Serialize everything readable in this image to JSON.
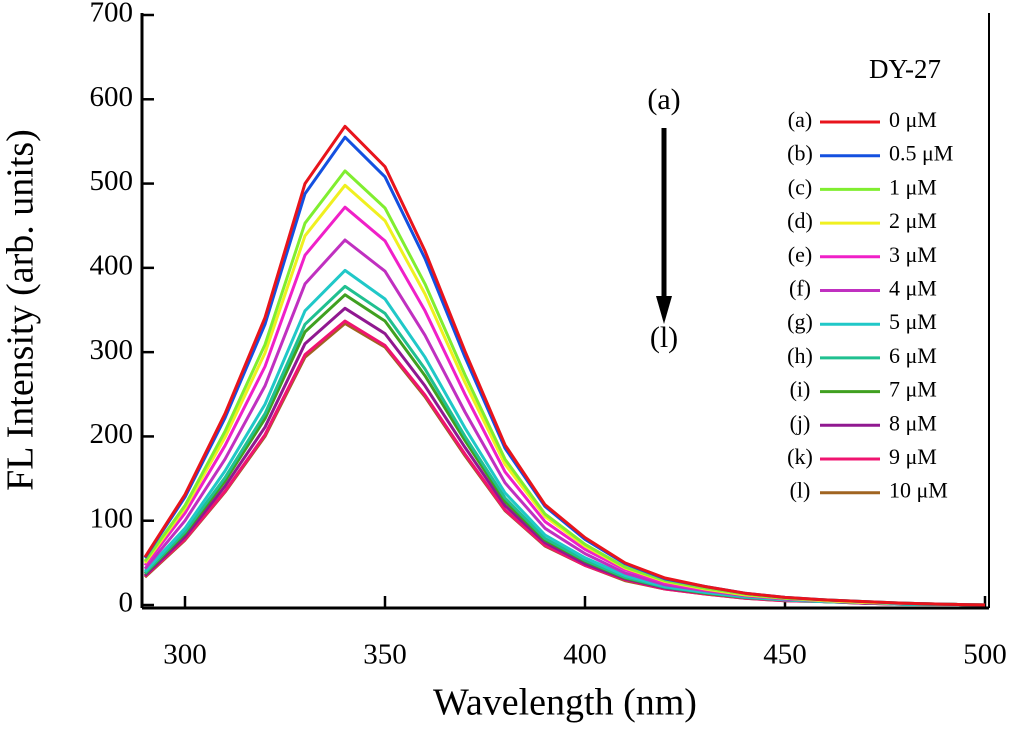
{
  "chart_data": {
    "type": "line",
    "xlabel": "Wavelength (nm)",
    "ylabel": "FL Intensity (arb. units)",
    "legend_title": "DY-27",
    "annotations": [
      "(a)",
      "(l)"
    ],
    "xlim": [
      290,
      501
    ],
    "ylim": [
      0,
      700
    ],
    "xticks": [
      300,
      350,
      400,
      450,
      500
    ],
    "yticks": [
      0,
      100,
      200,
      300,
      400,
      500,
      600,
      700
    ],
    "x": [
      290,
      300,
      310,
      320,
      330,
      340,
      350,
      360,
      370,
      380,
      390,
      400,
      410,
      420,
      430,
      440,
      450,
      460,
      470,
      480,
      490,
      500
    ],
    "series": [
      {
        "label": "(a)",
        "name": "0 μM",
        "color": "#e8141c",
        "values": [
          57,
          131,
          227,
          341,
          500,
          568,
          520,
          420,
          301,
          190,
          119,
          80,
          50,
          32,
          22,
          14,
          9,
          6,
          4,
          2,
          1,
          0
        ]
      },
      {
        "label": "(b)",
        "name": "0.5 μM",
        "color": "#1450e0",
        "values": [
          56,
          128,
          222,
          333,
          488,
          555,
          508,
          411,
          294,
          186,
          117,
          78,
          49,
          31,
          22,
          14,
          9,
          6,
          4,
          2,
          1,
          0
        ]
      },
      {
        "label": "(c)",
        "name": "1 μM",
        "color": "#80ee30",
        "values": [
          52,
          118,
          206,
          309,
          453,
          515,
          471,
          381,
          273,
          173,
          108,
          72,
          45,
          29,
          20,
          13,
          8,
          6,
          4,
          2,
          1,
          0
        ]
      },
      {
        "label": "(d)",
        "name": "2 μM",
        "color": "#f0f020",
        "values": [
          50,
          115,
          199,
          299,
          438,
          498,
          456,
          369,
          264,
          167,
          105,
          70,
          44,
          28,
          19,
          12,
          8,
          5,
          3,
          2,
          1,
          0
        ]
      },
      {
        "label": "(e)",
        "name": "3 μM",
        "color": "#f020c8",
        "values": [
          47,
          109,
          189,
          283,
          415,
          472,
          432,
          349,
          250,
          158,
          99,
          66,
          42,
          26,
          18,
          12,
          8,
          5,
          3,
          2,
          1,
          0
        ]
      },
      {
        "label": "(f)",
        "name": "4 μM",
        "color": "#c030c0",
        "values": [
          43,
          100,
          173,
          260,
          381,
          433,
          396,
          320,
          229,
          145,
          91,
          61,
          38,
          24,
          17,
          11,
          7,
          5,
          3,
          2,
          1,
          0
        ]
      },
      {
        "label": "(g)",
        "name": "5 μM",
        "color": "#20c8c8",
        "values": [
          40,
          91,
          159,
          238,
          349,
          397,
          363,
          294,
          210,
          133,
          83,
          56,
          35,
          22,
          15,
          10,
          6,
          4,
          3,
          1,
          1,
          0
        ]
      },
      {
        "label": "(h)",
        "name": "6 μM",
        "color": "#20c090",
        "values": [
          38,
          87,
          151,
          227,
          333,
          378,
          346,
          280,
          200,
          127,
          79,
          53,
          33,
          21,
          15,
          9,
          6,
          4,
          3,
          1,
          1,
          0
        ]
      },
      {
        "label": "(i)",
        "name": "7 μM",
        "color": "#40a020",
        "values": [
          37,
          85,
          147,
          221,
          324,
          368,
          337,
          272,
          195,
          123,
          77,
          52,
          32,
          21,
          14,
          9,
          6,
          4,
          3,
          1,
          1,
          0
        ]
      },
      {
        "label": "(j)",
        "name": "8 μM",
        "color": "#901890",
        "values": [
          35,
          81,
          141,
          211,
          310,
          352,
          322,
          260,
          187,
          118,
          74,
          49,
          31,
          20,
          14,
          9,
          6,
          4,
          2,
          1,
          1,
          0
        ]
      },
      {
        "label": "(k)",
        "name": "9 μM",
        "color": "#f01470",
        "values": [
          34,
          78,
          135,
          202,
          297,
          337,
          308,
          249,
          179,
          113,
          71,
          47,
          30,
          19,
          13,
          8,
          5,
          4,
          2,
          1,
          1,
          0
        ]
      },
      {
        "label": "(l)",
        "name": "10 μM",
        "color": "#a06420",
        "values": [
          33,
          77,
          134,
          200,
          294,
          334,
          306,
          247,
          177,
          112,
          70,
          47,
          29,
          19,
          13,
          8,
          5,
          4,
          2,
          1,
          1,
          0
        ]
      }
    ]
  }
}
